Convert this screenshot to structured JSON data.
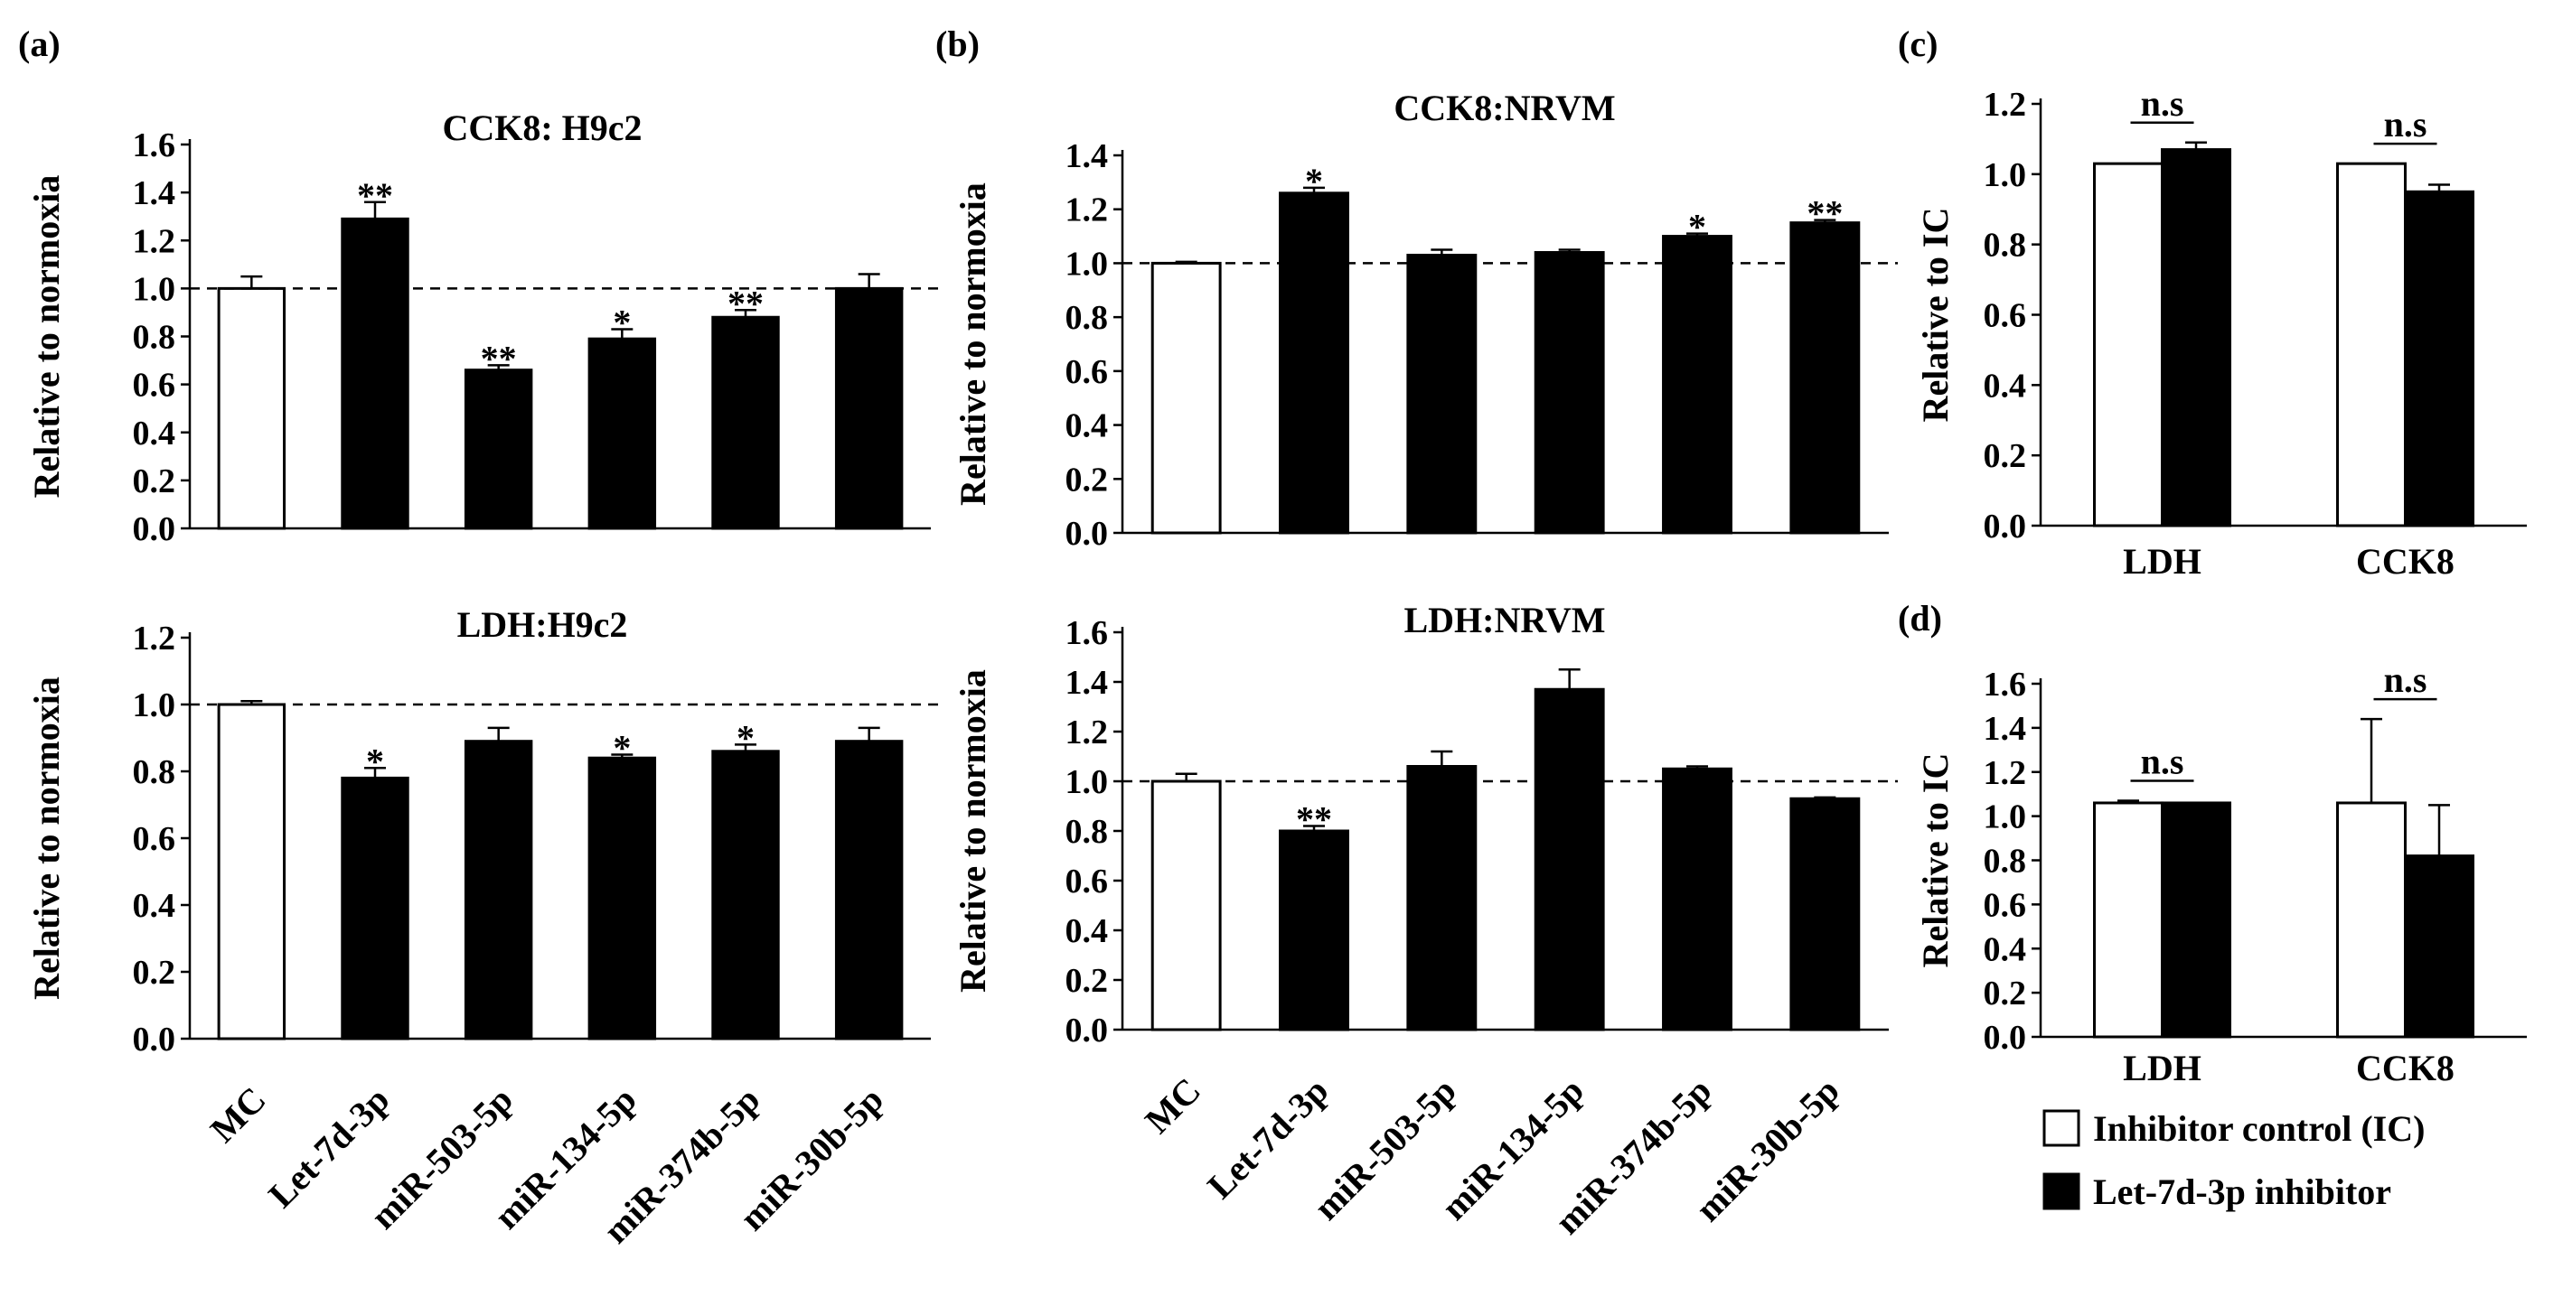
{
  "colors": {
    "highlight": "#ff0000",
    "bar_black": "#000000",
    "bar_white": "#ffffff"
  },
  "panel_labels": [
    "(a)",
    "(b)",
    "(c)",
    "(d)"
  ],
  "category_labels": [
    "MC",
    "Let-7d-3p",
    "miR-503-5p",
    "miR-134-5p",
    "miR-374b-5p",
    "miR-30b-5p"
  ],
  "legend": {
    "items": [
      {
        "label": "Inhibitor control (IC)",
        "fill": "#ffffff"
      },
      {
        "label": "Let-7d-3p inhibitor",
        "fill": "#000000"
      }
    ]
  },
  "chart_data": [
    {
      "id": "a1",
      "type": "bar",
      "panel": "(a)",
      "title": "CCK8: H9c2",
      "ylabel": "Relative to normoxia",
      "ylim": [
        0,
        1.6
      ],
      "yticks": [
        "0.0",
        "0.2",
        "0.4",
        "0.6",
        "0.8",
        "1.0",
        "1.2",
        "1.4",
        "1.6"
      ],
      "categories": [
        "MC",
        "Let-7d-3p",
        "miR-503-5p",
        "miR-134-5p",
        "miR-374b-5p",
        "miR-30b-5p"
      ],
      "values": [
        1.0,
        1.29,
        0.66,
        0.79,
        0.88,
        1.0
      ],
      "errors": [
        0.05,
        0.07,
        0.02,
        0.04,
        0.03,
        0.06
      ],
      "fills": [
        "white",
        "black",
        "black",
        "black",
        "black",
        "black"
      ],
      "significance": [
        "",
        "**",
        "**",
        "*",
        "**",
        ""
      ],
      "reference_line": 1.0,
      "show_xlabels": false
    },
    {
      "id": "a2",
      "type": "bar",
      "panel": "",
      "title": "LDH:H9c2",
      "ylabel": "Relative to normoxia",
      "ylim": [
        0,
        1.2
      ],
      "yticks": [
        "0.0",
        "0.2",
        "0.4",
        "0.6",
        "0.8",
        "1.0",
        "1.2"
      ],
      "categories": [
        "MC",
        "Let-7d-3p",
        "miR-503-5p",
        "miR-134-5p",
        "miR-374b-5p",
        "miR-30b-5p"
      ],
      "values": [
        1.0,
        0.78,
        0.89,
        0.84,
        0.86,
        0.89
      ],
      "errors": [
        0.01,
        0.03,
        0.04,
        0.01,
        0.02,
        0.04
      ],
      "fills": [
        "white",
        "black",
        "black",
        "black",
        "black",
        "black"
      ],
      "significance": [
        "",
        "*",
        "",
        "*",
        "*",
        ""
      ],
      "reference_line": 1.0,
      "show_xlabels": true
    },
    {
      "id": "b1",
      "type": "bar",
      "panel": "(b)",
      "title": "CCK8:NRVM",
      "ylabel": "Relative to normoxia",
      "ylim": [
        0,
        1.4
      ],
      "yticks": [
        "0.0",
        "0.2",
        "0.4",
        "0.6",
        "0.8",
        "1.0",
        "1.2",
        "1.4"
      ],
      "categories": [
        "MC",
        "Let-7d-3p",
        "miR-503-5p",
        "miR-134-5p",
        "miR-374b-5p",
        "miR-30b-5p"
      ],
      "values": [
        1.0,
        1.26,
        1.03,
        1.04,
        1.1,
        1.15
      ],
      "errors": [
        0.005,
        0.02,
        0.02,
        0.01,
        0.01,
        0.01
      ],
      "fills": [
        "white",
        "black",
        "black",
        "black",
        "black",
        "black"
      ],
      "significance": [
        "",
        "*",
        "",
        "",
        "*",
        "**"
      ],
      "reference_line": 1.0,
      "show_xlabels": false
    },
    {
      "id": "b2",
      "type": "bar",
      "panel": "",
      "title": "LDH:NRVM",
      "ylabel": "Relative to normoxia",
      "ylim": [
        0,
        1.6
      ],
      "yticks": [
        "0.0",
        "0.2",
        "0.4",
        "0.6",
        "0.8",
        "1.0",
        "1.2",
        "1.4",
        "1.6"
      ],
      "categories": [
        "MC",
        "Let-7d-3p",
        "miR-503-5p",
        "miR-134-5p",
        "miR-374b-5p",
        "miR-30b-5p"
      ],
      "values": [
        1.0,
        0.8,
        1.06,
        1.37,
        1.05,
        0.93
      ],
      "errors": [
        0.03,
        0.02,
        0.06,
        0.08,
        0.01,
        0.005
      ],
      "fills": [
        "white",
        "black",
        "black",
        "black",
        "black",
        "black"
      ],
      "significance": [
        "",
        "**",
        "",
        "",
        "",
        ""
      ],
      "reference_line": 1.0,
      "show_xlabels": true
    },
    {
      "id": "c",
      "type": "bar",
      "panel": "(c)",
      "title": "",
      "ylabel": "Relative to IC",
      "ylim": [
        0,
        1.2
      ],
      "yticks": [
        "0.0",
        "0.2",
        "0.4",
        "0.6",
        "0.8",
        "1.0",
        "1.2"
      ],
      "categories": [
        "LDH",
        "CCK8"
      ],
      "series": [
        {
          "name": "Inhibitor control (IC)",
          "values": [
            1.03,
            1.03
          ],
          "errors": [
            0,
            0
          ]
        },
        {
          "name": "Let-7d-3p inhibitor",
          "values": [
            1.07,
            0.95
          ],
          "errors": [
            0.02,
            0.02
          ]
        }
      ],
      "significance": [
        "n.s",
        "n.s"
      ]
    },
    {
      "id": "d",
      "type": "bar",
      "panel": "(d)",
      "title": "",
      "ylabel": "Relative to IC",
      "ylim": [
        0,
        1.6
      ],
      "yticks": [
        "0.0",
        "0.2",
        "0.4",
        "0.6",
        "0.8",
        "1.0",
        "1.2",
        "1.4",
        "1.6"
      ],
      "categories": [
        "LDH",
        "CCK8"
      ],
      "series": [
        {
          "name": "Inhibitor control (IC)",
          "values": [
            1.06,
            1.06
          ],
          "errors": [
            0.01,
            0.38
          ]
        },
        {
          "name": "Let-7d-3p inhibitor",
          "values": [
            1.06,
            0.82
          ],
          "errors": [
            0,
            0.23
          ]
        }
      ],
      "significance": [
        "n.s",
        "n.s"
      ]
    }
  ]
}
